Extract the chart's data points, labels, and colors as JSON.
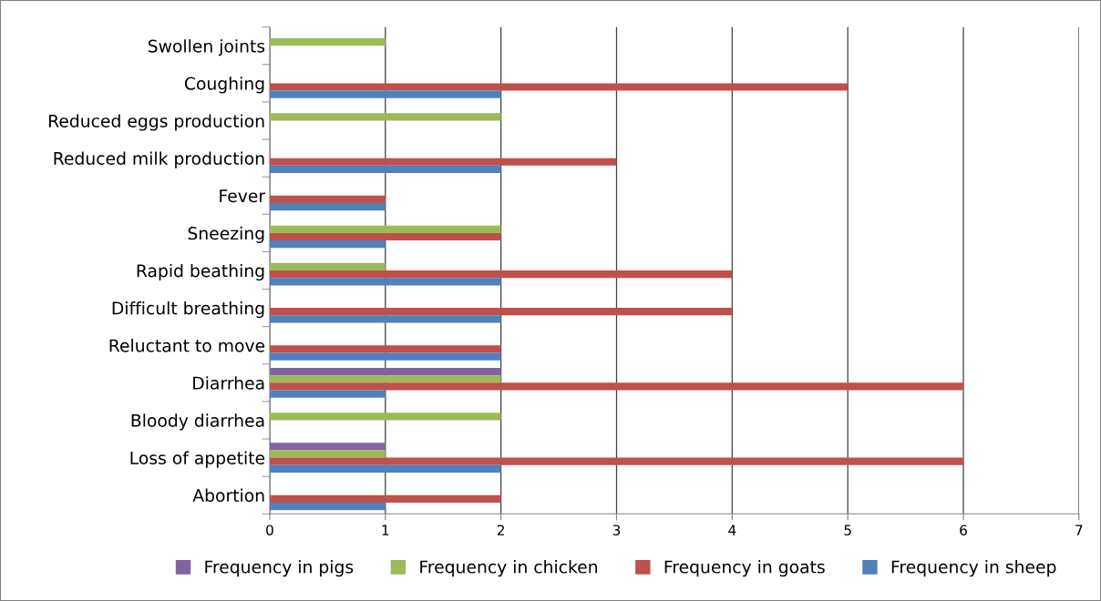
{
  "chart_data": {
    "type": "bar",
    "orientation": "horizontal",
    "categories": [
      "Swollen joints",
      "Coughing",
      "Reduced eggs production",
      "Reduced milk production",
      "Fever",
      "Sneezing",
      "Rapid beathing",
      "Difficult breathing",
      "Reluctant to move",
      "Diarrhea",
      "Bloody diarrhea",
      "Loss of appetite",
      "Abortion"
    ],
    "series": [
      {
        "name": "Frequency in pigs",
        "color": "#8064a2",
        "values": [
          null,
          null,
          null,
          null,
          null,
          null,
          null,
          null,
          null,
          2,
          null,
          1,
          null
        ]
      },
      {
        "name": "Frequency in chicken",
        "color": "#9bbb59",
        "values": [
          1,
          null,
          2,
          null,
          null,
          2,
          1,
          null,
          null,
          2,
          2,
          1,
          null
        ]
      },
      {
        "name": "Frequency in goats",
        "color": "#c0504d",
        "values": [
          null,
          5,
          null,
          3,
          1,
          2,
          4,
          4,
          2,
          6,
          null,
          6,
          2
        ]
      },
      {
        "name": "Frequency in sheep",
        "color": "#4f81bd",
        "values": [
          null,
          2,
          null,
          2,
          1,
          1,
          2,
          2,
          2,
          1,
          null,
          2,
          1
        ]
      }
    ],
    "xlim": [
      0,
      7
    ],
    "xticks": [
      0,
      1,
      2,
      3,
      4,
      5,
      6,
      7
    ],
    "grid": "x",
    "legend": "bottom"
  }
}
